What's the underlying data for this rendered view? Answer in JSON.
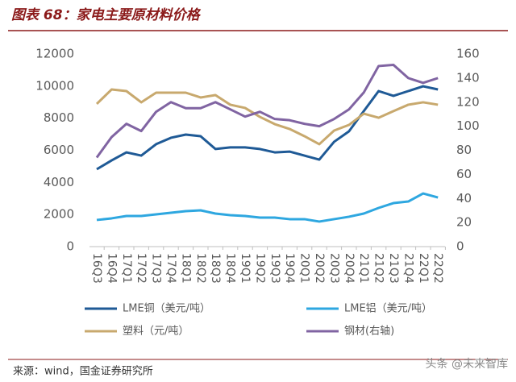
{
  "chart_data": {
    "type": "line",
    "title": "图表 68：家电主要原材料价格",
    "source": "来源：wind，国金证券研究所",
    "watermark": "头条 @未来智库",
    "categories": [
      "16Q3",
      "16Q4",
      "17Q1",
      "17Q2",
      "17Q3",
      "17Q4",
      "18Q1",
      "18Q2",
      "18Q3",
      "18Q4",
      "19Q1",
      "19Q2",
      "19Q3",
      "19Q4",
      "20Q1",
      "20Q2",
      "20Q3",
      "20Q4",
      "21Q1",
      "21Q2",
      "21Q3",
      "21Q4",
      "22Q1",
      "22Q2"
    ],
    "series": [
      {
        "name": "LME铜（美元/吨）",
        "color": "#1f5a96",
        "values": [
          4820,
          5370,
          5870,
          5670,
          6380,
          6780,
          6980,
          6880,
          6080,
          6180,
          6180,
          6080,
          5870,
          5920,
          5670,
          5420,
          6530,
          7180,
          8440,
          9690,
          9390,
          9690,
          9990,
          9790
        ]
      },
      {
        "name": "LME铝（美元/吨）",
        "color": "#2ea7e0",
        "values": [
          1660,
          1760,
          1910,
          1910,
          2010,
          2110,
          2210,
          2260,
          2060,
          1960,
          1910,
          1810,
          1810,
          1710,
          1710,
          1560,
          1710,
          1860,
          2060,
          2410,
          2710,
          2810,
          3310,
          3060
        ]
      },
      {
        "name": "塑料（元/吨）",
        "color": "#c8a96e",
        "values": [
          8890,
          9790,
          9690,
          8990,
          9590,
          9590,
          9590,
          9290,
          9440,
          8840,
          8640,
          8080,
          7630,
          7330,
          6880,
          6380,
          7230,
          7580,
          8280,
          8030,
          8440,
          8840,
          8990,
          8840
        ]
      },
      {
        "name": "钢材(右轴)",
        "color": "#8064a2",
        "axis": "y2",
        "values": [
          74,
          91,
          102,
          96,
          112,
          120,
          115,
          115,
          120,
          114,
          108,
          112,
          106,
          105,
          102,
          100,
          106,
          114,
          128,
          150,
          151,
          140,
          136,
          140
        ]
      }
    ],
    "ylim": [
      0,
      12000
    ],
    "yticks": [
      0,
      2000,
      4000,
      6000,
      8000,
      10000,
      12000
    ],
    "y2lim": [
      0,
      160
    ],
    "y2ticks": [
      0,
      20,
      40,
      60,
      80,
      100,
      120,
      140,
      160
    ]
  }
}
